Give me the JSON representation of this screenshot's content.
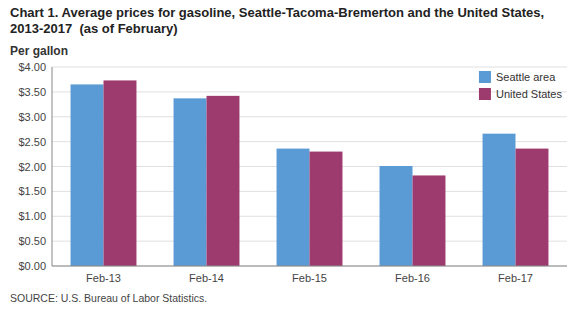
{
  "chart_data": {
    "type": "bar",
    "title": "Chart 1. Average prices for gasoline, Seattle-Tacoma-Bremerton and the United States, 2013-2017  (as of February)",
    "ylabel": "Per gallon",
    "source": "SOURCE: U.S. Bureau of Labor Statistics.",
    "categories": [
      "Feb-13",
      "Feb-14",
      "Feb-15",
      "Feb-16",
      "Feb-17"
    ],
    "series": [
      {
        "name": "Seattle area",
        "color": "#5B9BD5",
        "values": [
          3.65,
          3.37,
          2.36,
          2.01,
          2.66
        ]
      },
      {
        "name": "United States",
        "color": "#9E3B6E",
        "values": [
          3.73,
          3.42,
          2.3,
          1.82,
          2.36
        ]
      }
    ],
    "ylim": [
      0,
      4.0
    ],
    "yticks": [
      {
        "value": 0.0,
        "label": "$0.00"
      },
      {
        "value": 0.5,
        "label": "$0.50"
      },
      {
        "value": 1.0,
        "label": "$1.00"
      },
      {
        "value": 1.5,
        "label": "$1.50"
      },
      {
        "value": 2.0,
        "label": "$2.00"
      },
      {
        "value": 2.5,
        "label": "$2.50"
      },
      {
        "value": 3.0,
        "label": "$3.00"
      },
      {
        "value": 3.5,
        "label": "$3.50"
      },
      {
        "value": 4.0,
        "label": "$4.00"
      }
    ],
    "grid": true,
    "legend": "upper right"
  }
}
